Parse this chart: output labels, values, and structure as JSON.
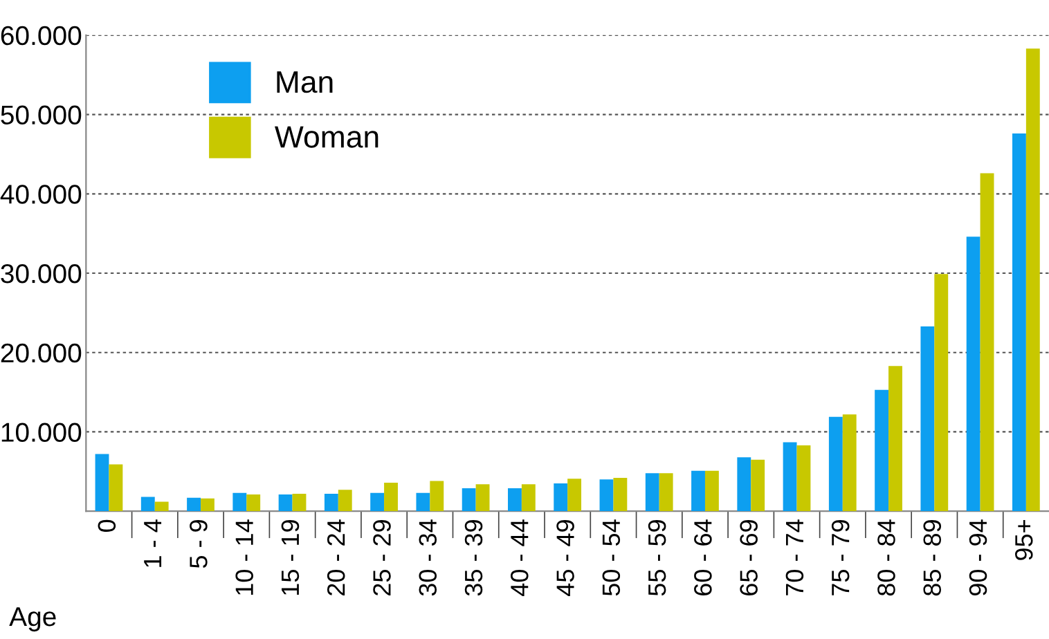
{
  "chart_data": {
    "type": "bar",
    "xlabel": "Age",
    "categories": [
      "0",
      "1 - 4",
      "5 - 9",
      "10 - 14",
      "15 - 19",
      "20 - 24",
      "25 - 29",
      "30 - 34",
      "35 - 39",
      "40 - 44",
      "45 - 49",
      "50 - 54",
      "55 - 59",
      "60 - 64",
      "65 - 69",
      "70 - 74",
      "75 - 79",
      "80 - 84",
      "85 - 89",
      "90 - 94",
      "95+"
    ],
    "series": [
      {
        "name": "Man",
        "color": "#0d9ff0",
        "values": [
          7200,
          1800,
          1700,
          2300,
          2100,
          2200,
          2300,
          2300,
          2900,
          2900,
          3500,
          4000,
          4800,
          5100,
          6800,
          8700,
          11900,
          15300,
          23300,
          34600,
          47600
        ]
      },
      {
        "name": "Woman",
        "color": "#c8c800",
        "values": [
          5900,
          1200,
          1600,
          2100,
          2200,
          2700,
          3600,
          3800,
          3400,
          3400,
          4100,
          4200,
          4800,
          5100,
          6500,
          8300,
          12200,
          18300,
          29900,
          42600,
          58300
        ]
      }
    ],
    "ylim": [
      0,
      60000
    ],
    "yticks": [
      {
        "value": 0,
        "label": null
      },
      {
        "value": 10000,
        "label": "10.000"
      },
      {
        "value": 20000,
        "label": "20.000"
      },
      {
        "value": 30000,
        "label": "30.000"
      },
      {
        "value": 40000,
        "label": "40.000"
      },
      {
        "value": 50000,
        "label": "50.000"
      },
      {
        "value": 60000,
        "label": "60.000"
      }
    ],
    "grid": "y",
    "legend": "top left"
  }
}
